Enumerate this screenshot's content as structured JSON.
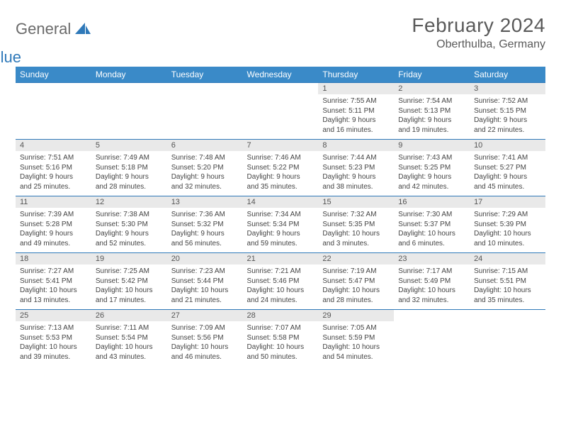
{
  "brand": {
    "general": "General",
    "blue": "Blue"
  },
  "header": {
    "month_title": "February 2024",
    "location": "Oberthulba, Germany"
  },
  "colors": {
    "header_bg": "#3a8ac8",
    "header_text": "#ffffff",
    "rule": "#2f79b9",
    "daynum_bg": "#e9e9e9",
    "body_text": "#444444",
    "title_text": "#5a5a5a"
  },
  "weekdays": [
    "Sunday",
    "Monday",
    "Tuesday",
    "Wednesday",
    "Thursday",
    "Friday",
    "Saturday"
  ],
  "weeks": [
    [
      null,
      null,
      null,
      null,
      {
        "n": "1",
        "sr": "Sunrise: 7:55 AM",
        "ss": "Sunset: 5:11 PM",
        "d1": "Daylight: 9 hours",
        "d2": "and 16 minutes."
      },
      {
        "n": "2",
        "sr": "Sunrise: 7:54 AM",
        "ss": "Sunset: 5:13 PM",
        "d1": "Daylight: 9 hours",
        "d2": "and 19 minutes."
      },
      {
        "n": "3",
        "sr": "Sunrise: 7:52 AM",
        "ss": "Sunset: 5:15 PM",
        "d1": "Daylight: 9 hours",
        "d2": "and 22 minutes."
      }
    ],
    [
      {
        "n": "4",
        "sr": "Sunrise: 7:51 AM",
        "ss": "Sunset: 5:16 PM",
        "d1": "Daylight: 9 hours",
        "d2": "and 25 minutes."
      },
      {
        "n": "5",
        "sr": "Sunrise: 7:49 AM",
        "ss": "Sunset: 5:18 PM",
        "d1": "Daylight: 9 hours",
        "d2": "and 28 minutes."
      },
      {
        "n": "6",
        "sr": "Sunrise: 7:48 AM",
        "ss": "Sunset: 5:20 PM",
        "d1": "Daylight: 9 hours",
        "d2": "and 32 minutes."
      },
      {
        "n": "7",
        "sr": "Sunrise: 7:46 AM",
        "ss": "Sunset: 5:22 PM",
        "d1": "Daylight: 9 hours",
        "d2": "and 35 minutes."
      },
      {
        "n": "8",
        "sr": "Sunrise: 7:44 AM",
        "ss": "Sunset: 5:23 PM",
        "d1": "Daylight: 9 hours",
        "d2": "and 38 minutes."
      },
      {
        "n": "9",
        "sr": "Sunrise: 7:43 AM",
        "ss": "Sunset: 5:25 PM",
        "d1": "Daylight: 9 hours",
        "d2": "and 42 minutes."
      },
      {
        "n": "10",
        "sr": "Sunrise: 7:41 AM",
        "ss": "Sunset: 5:27 PM",
        "d1": "Daylight: 9 hours",
        "d2": "and 45 minutes."
      }
    ],
    [
      {
        "n": "11",
        "sr": "Sunrise: 7:39 AM",
        "ss": "Sunset: 5:28 PM",
        "d1": "Daylight: 9 hours",
        "d2": "and 49 minutes."
      },
      {
        "n": "12",
        "sr": "Sunrise: 7:38 AM",
        "ss": "Sunset: 5:30 PM",
        "d1": "Daylight: 9 hours",
        "d2": "and 52 minutes."
      },
      {
        "n": "13",
        "sr": "Sunrise: 7:36 AM",
        "ss": "Sunset: 5:32 PM",
        "d1": "Daylight: 9 hours",
        "d2": "and 56 minutes."
      },
      {
        "n": "14",
        "sr": "Sunrise: 7:34 AM",
        "ss": "Sunset: 5:34 PM",
        "d1": "Daylight: 9 hours",
        "d2": "and 59 minutes."
      },
      {
        "n": "15",
        "sr": "Sunrise: 7:32 AM",
        "ss": "Sunset: 5:35 PM",
        "d1": "Daylight: 10 hours",
        "d2": "and 3 minutes."
      },
      {
        "n": "16",
        "sr": "Sunrise: 7:30 AM",
        "ss": "Sunset: 5:37 PM",
        "d1": "Daylight: 10 hours",
        "d2": "and 6 minutes."
      },
      {
        "n": "17",
        "sr": "Sunrise: 7:29 AM",
        "ss": "Sunset: 5:39 PM",
        "d1": "Daylight: 10 hours",
        "d2": "and 10 minutes."
      }
    ],
    [
      {
        "n": "18",
        "sr": "Sunrise: 7:27 AM",
        "ss": "Sunset: 5:41 PM",
        "d1": "Daylight: 10 hours",
        "d2": "and 13 minutes."
      },
      {
        "n": "19",
        "sr": "Sunrise: 7:25 AM",
        "ss": "Sunset: 5:42 PM",
        "d1": "Daylight: 10 hours",
        "d2": "and 17 minutes."
      },
      {
        "n": "20",
        "sr": "Sunrise: 7:23 AM",
        "ss": "Sunset: 5:44 PM",
        "d1": "Daylight: 10 hours",
        "d2": "and 21 minutes."
      },
      {
        "n": "21",
        "sr": "Sunrise: 7:21 AM",
        "ss": "Sunset: 5:46 PM",
        "d1": "Daylight: 10 hours",
        "d2": "and 24 minutes."
      },
      {
        "n": "22",
        "sr": "Sunrise: 7:19 AM",
        "ss": "Sunset: 5:47 PM",
        "d1": "Daylight: 10 hours",
        "d2": "and 28 minutes."
      },
      {
        "n": "23",
        "sr": "Sunrise: 7:17 AM",
        "ss": "Sunset: 5:49 PM",
        "d1": "Daylight: 10 hours",
        "d2": "and 32 minutes."
      },
      {
        "n": "24",
        "sr": "Sunrise: 7:15 AM",
        "ss": "Sunset: 5:51 PM",
        "d1": "Daylight: 10 hours",
        "d2": "and 35 minutes."
      }
    ],
    [
      {
        "n": "25",
        "sr": "Sunrise: 7:13 AM",
        "ss": "Sunset: 5:53 PM",
        "d1": "Daylight: 10 hours",
        "d2": "and 39 minutes."
      },
      {
        "n": "26",
        "sr": "Sunrise: 7:11 AM",
        "ss": "Sunset: 5:54 PM",
        "d1": "Daylight: 10 hours",
        "d2": "and 43 minutes."
      },
      {
        "n": "27",
        "sr": "Sunrise: 7:09 AM",
        "ss": "Sunset: 5:56 PM",
        "d1": "Daylight: 10 hours",
        "d2": "and 46 minutes."
      },
      {
        "n": "28",
        "sr": "Sunrise: 7:07 AM",
        "ss": "Sunset: 5:58 PM",
        "d1": "Daylight: 10 hours",
        "d2": "and 50 minutes."
      },
      {
        "n": "29",
        "sr": "Sunrise: 7:05 AM",
        "ss": "Sunset: 5:59 PM",
        "d1": "Daylight: 10 hours",
        "d2": "and 54 minutes."
      },
      null,
      null
    ]
  ]
}
